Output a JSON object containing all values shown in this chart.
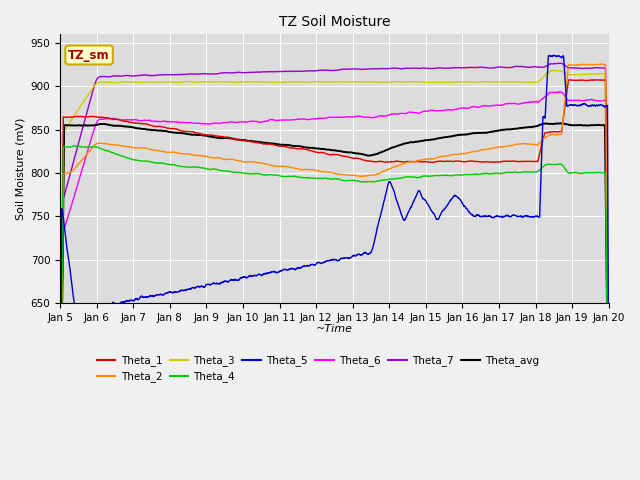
{
  "title": "TZ Soil Moisture",
  "xlabel": "~Time",
  "ylabel": "Soil Moisture (mV)",
  "ylim": [
    650,
    960
  ],
  "yticks": [
    650,
    700,
    750,
    800,
    850,
    900,
    950
  ],
  "xlim": [
    0,
    15
  ],
  "bg_color": "#dcdcdc",
  "fig_color": "#f0f0f0",
  "legend_label": "TZ_sm",
  "legend_text_color": "#aa0000",
  "series_colors": {
    "Theta_1": "#dd0000",
    "Theta_2": "#ff8800",
    "Theta_3": "#cccc00",
    "Theta_4": "#00cc00",
    "Theta_5": "#0000cc",
    "Theta_6": "#ff00ff",
    "Theta_7": "#9900cc",
    "Theta_avg": "#000000"
  }
}
